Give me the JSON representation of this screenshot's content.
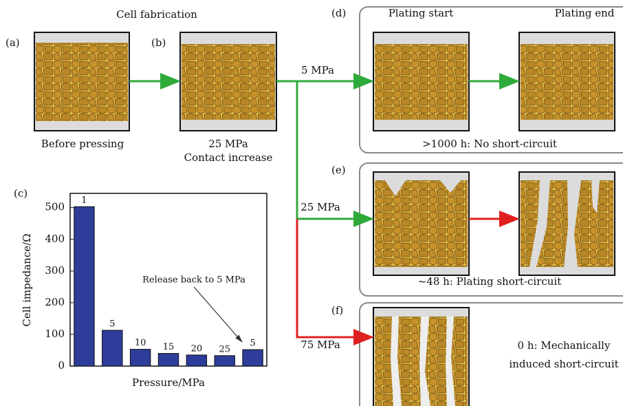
{
  "labels": {
    "a": "(a)",
    "b": "(b)",
    "c": "(c)",
    "d": "(d)",
    "e": "(e)",
    "f": "(f)"
  },
  "header": "Cell fabrication",
  "cells": {
    "before": "Before pressing",
    "pressed": "25 MPa",
    "pressed_note": "Contact increase"
  },
  "columns": {
    "start": "Plating start",
    "end": "Plating end"
  },
  "branches": {
    "d": "5 MPa",
    "e": "25 MPa",
    "f": "75 MPa"
  },
  "outcomes": {
    "d": ">1000 h: No short-circuit",
    "e": "~48 h: Plating short-circuit",
    "f": [
      "0 h: Mechanically",
      "induced short-circuit"
    ]
  },
  "chart_data": {
    "type": "bar",
    "categories": [
      "1",
      "5",
      "10",
      "15",
      "20",
      "25",
      "5"
    ],
    "values": [
      503,
      113,
      53,
      40,
      35,
      33,
      52
    ],
    "color": "#2e3d9a",
    "ylim": [
      0,
      545
    ],
    "yticks": [
      0,
      100,
      200,
      300,
      400,
      500
    ],
    "xlabel": "Pressure/MPa",
    "ylabel": "Cell impedance/Ω",
    "annotation": "Release back to 5 MPa",
    "grid": false
  }
}
